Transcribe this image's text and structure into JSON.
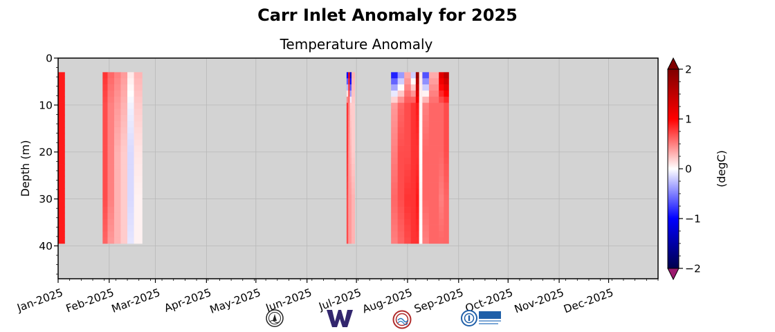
{
  "figure": {
    "suptitle": "Carr Inlet Anomaly for 2025",
    "logos": [
      "uw-oceanography-seal-icon",
      "uw-w-logo-icon",
      "nanoos-logo-icon",
      "ioos-logo-icon"
    ]
  },
  "chart_data": {
    "type": "heatmap",
    "title": "Temperature Anomaly",
    "xlabel": "",
    "ylabel": "Depth (m)",
    "colorbar_label": "(degC)",
    "colormap": "seismic",
    "color_limits": [
      -2,
      2
    ],
    "colorbar_extend": "both",
    "colorbar_ticks": [
      2,
      1,
      0,
      -1,
      -2
    ],
    "colorbar_tick_labels": [
      "2",
      "1",
      "0",
      "−1",
      "−2"
    ],
    "background_color": "#d3d3d3",
    "grid": true,
    "xlim": [
      "2025-01-01",
      "2025-12-31"
    ],
    "ylim": [
      47,
      0
    ],
    "y_inverted": true,
    "x_ticks": [
      "2025-01-01",
      "2025-02-01",
      "2025-03-01",
      "2025-04-01",
      "2025-05-01",
      "2025-06-01",
      "2025-07-01",
      "2025-08-01",
      "2025-09-01",
      "2025-10-01",
      "2025-11-01",
      "2025-12-01"
    ],
    "x_tick_labels": [
      "Jan-2025",
      "Feb-2025",
      "Mar-2025",
      "Apr-2025",
      "May-2025",
      "Jun-2025",
      "Jul-2025",
      "Aug-2025",
      "Sep-2025",
      "Oct-2025",
      "Nov-2025",
      "Dec-2025"
    ],
    "y_ticks": [
      0,
      10,
      20,
      30,
      40
    ],
    "y_tick_labels": [
      "0",
      "10",
      "20",
      "30",
      "40"
    ],
    "data_segments": [
      {
        "dates": [
          "2025-01-01",
          "2025-01-05"
        ],
        "depth_range": [
          3,
          39.5
        ],
        "columns": [
          {
            "start": "2025-01-01",
            "end": "2025-01-05",
            "anomaly": [
              0.9,
              0.9,
              0.9,
              0.9,
              0.9
            ]
          }
        ]
      },
      {
        "dates": [
          "2025-01-28",
          "2025-02-21"
        ],
        "depth_range": [
          3,
          39.5
        ],
        "columns": [
          {
            "start": "2025-01-28",
            "end": "2025-01-31",
            "anomaly": [
              0.8,
              0.7,
              0.7,
              0.7,
              0.6
            ]
          },
          {
            "start": "2025-01-31",
            "end": "2025-02-04",
            "anomaly": [
              0.6,
              0.5,
              0.5,
              0.5,
              0.4
            ]
          },
          {
            "start": "2025-02-04",
            "end": "2025-02-08",
            "anomaly": [
              0.5,
              0.4,
              0.3,
              0.3,
              0.3
            ]
          },
          {
            "start": "2025-02-08",
            "end": "2025-02-12",
            "anomaly": [
              0.4,
              0.3,
              0.2,
              0.2,
              0.2
            ]
          },
          {
            "start": "2025-02-12",
            "end": "2025-02-16",
            "anomaly": [
              0.1,
              -0.05,
              -0.15,
              -0.15,
              -0.1
            ]
          },
          {
            "start": "2025-02-16",
            "end": "2025-02-21",
            "anomaly": [
              0.3,
              0.2,
              0.1,
              0.05,
              0.05
            ]
          }
        ]
      },
      {
        "dates": [
          "2025-06-25",
          "2025-06-30"
        ],
        "depth_range": [
          3,
          39.5
        ],
        "columns": [
          {
            "start": "2025-06-25",
            "end": "2025-06-26",
            "anomaly": [
              -1.2,
              0.8,
              0.8,
              0.7,
              0.7
            ]
          },
          {
            "start": "2025-06-26",
            "end": "2025-06-27",
            "anomaly": [
              1.0,
              0.5,
              0.4,
              0.4,
              0.4
            ]
          },
          {
            "start": "2025-06-27",
            "end": "2025-06-28",
            "anomaly": [
              -1.4,
              0.2,
              0.3,
              0.4,
              0.4
            ]
          },
          {
            "start": "2025-06-28",
            "end": "2025-06-30",
            "anomaly": [
              0.3,
              0.2,
              0.2,
              0.3,
              0.3
            ]
          }
        ]
      },
      {
        "dates": [
          "2025-07-22",
          "2025-08-26"
        ],
        "depth_range": [
          3,
          39.5
        ],
        "columns": [
          {
            "start": "2025-07-22",
            "end": "2025-07-26",
            "anomaly": [
              -1.0,
              0.4,
              0.5,
              0.6,
              0.5
            ]
          },
          {
            "start": "2025-07-26",
            "end": "2025-07-30",
            "anomaly": [
              -0.5,
              0.6,
              0.7,
              0.7,
              0.6
            ]
          },
          {
            "start": "2025-07-30",
            "end": "2025-08-03",
            "anomaly": [
              0.3,
              0.7,
              0.7,
              0.8,
              0.7
            ]
          },
          {
            "start": "2025-08-03",
            "end": "2025-08-06",
            "anomaly": [
              -0.3,
              0.8,
              0.8,
              0.8,
              0.8
            ]
          },
          {
            "start": "2025-08-06",
            "end": "2025-08-08",
            "anomaly": [
              1.9,
              0.9,
              0.8,
              0.9,
              0.8
            ]
          },
          {
            "start": "2025-08-08",
            "end": "2025-08-10",
            "anomaly": [
              0.1,
              0.05,
              0.0,
              0.05,
              0.0
            ]
          },
          {
            "start": "2025-08-10",
            "end": "2025-08-14",
            "anomaly": [
              -0.8,
              0.5,
              0.6,
              0.6,
              0.5
            ]
          },
          {
            "start": "2025-08-14",
            "end": "2025-08-20",
            "anomaly": [
              0.3,
              0.6,
              0.6,
              0.6,
              0.6
            ]
          },
          {
            "start": "2025-08-20",
            "end": "2025-08-23",
            "anomaly": [
              1.3,
              0.6,
              0.6,
              0.5,
              0.6
            ]
          },
          {
            "start": "2025-08-23",
            "end": "2025-08-26",
            "anomaly": [
              1.6,
              0.7,
              0.7,
              0.6,
              0.6
            ]
          }
        ]
      }
    ],
    "depth_bins": [
      3,
      10,
      20,
      30,
      39.5
    ]
  }
}
